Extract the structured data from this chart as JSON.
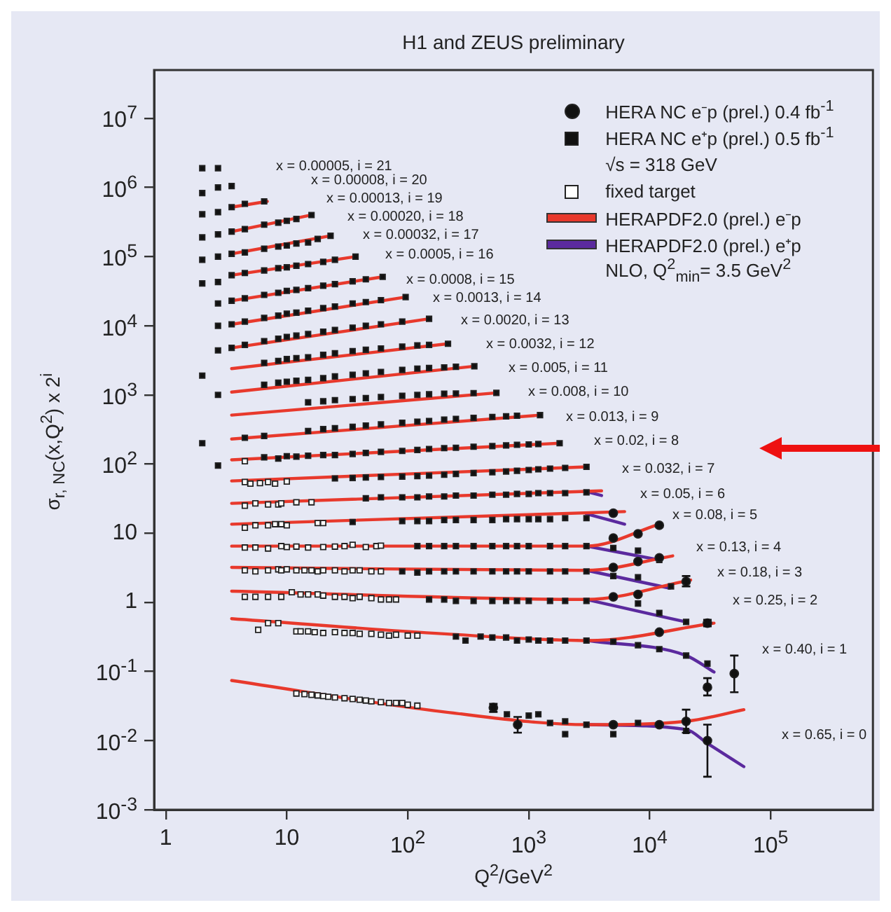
{
  "chart_data": {
    "type": "scatter",
    "title": "H1 and ZEUS preliminary",
    "xlabel": "Q$^{2}$/GeV$^{2}$",
    "ylabel": "σ$_{r, NC}$(x,Q$^{2}$) x 2$^{i}$",
    "log": "xy",
    "legend": "top right",
    "xlim": [
      0.8,
      700000
    ],
    "ylim": [
      0.001,
      50000000
    ],
    "xticks": [
      1,
      10,
      {
        "value": 100,
        "label": "10$^{2}$"
      },
      {
        "value": 1000,
        "label": "10$^{3}$"
      },
      {
        "value": 10000,
        "label": "10$^{4}$"
      },
      {
        "value": 100000,
        "label": "10$^{5}$"
      }
    ],
    "yticks": [
      {
        "value": 0.001,
        "label": "10$^{-3}$"
      },
      {
        "value": 0.01,
        "label": "10$^{-2}$"
      },
      {
        "value": 0.1,
        "label": "10$^{-1}$"
      },
      1,
      10,
      {
        "value": 100,
        "label": "10$^{2}$"
      },
      {
        "value": 1000,
        "label": "10$^{3}$"
      },
      {
        "value": 10000,
        "label": "10$^{4}$"
      },
      {
        "value": 100000,
        "label": "10$^{5}$"
      },
      {
        "value": 1000000,
        "label": "10$^{6}$"
      },
      {
        "value": 10000000,
        "label": "10$^{7}$"
      }
    ],
    "series": [
      {
        "name": "HERA NC e⁻p (prel.) 0.4 fb$^{-1}$",
        "marker": "circle",
        "color": "#111111",
        "x": [
          5000,
          5000,
          8000,
          12000,
          5000,
          8000,
          12000,
          5000,
          8000,
          20000,
          12000,
          30000,
          30000,
          50000,
          510,
          810,
          5000,
          12000,
          20000,
          30000
        ],
        "values": [
          19.5,
          8.5,
          9.8,
          13,
          3.2,
          3.9,
          4.4,
          1.2,
          1.3,
          2.0,
          0.37,
          0.5,
          0.059,
          0.093,
          0.03,
          0.017,
          0.017,
          0.017,
          0.019,
          0.01
        ],
        "errors": [
          null,
          null,
          null,
          null,
          null,
          null,
          null,
          null,
          null,
          [
            1.7,
            2.4
          ],
          null,
          [
            0.45,
            0.56
          ],
          [
            0.045,
            0.08
          ],
          [
            0.05,
            0.17
          ],
          [
            0.026,
            0.034
          ],
          [
            0.013,
            0.022
          ],
          null,
          null,
          [
            0.013,
            0.028
          ],
          [
            0.003,
            0.017
          ]
        ]
      },
      {
        "name": "HERA NC e⁺p (prel.) 0.5 fb$^{-1}$",
        "marker": "square",
        "color": "#111111",
        "x": [
          2,
          2.7,
          2,
          2.7,
          3.5,
          2,
          2.7,
          3.5,
          4.5,
          6.5,
          2,
          2.7,
          3.5,
          4.5,
          6.5,
          8.5,
          10,
          12,
          16,
          2,
          2.7,
          3.5,
          4.5,
          6.5,
          8.5,
          10,
          12,
          15,
          18,
          23,
          2,
          2.7,
          3.5,
          4.5,
          6.5,
          8.5,
          10,
          12,
          15,
          20,
          25,
          37,
          2.7,
          3.5,
          4.5,
          6.5,
          8.5,
          10,
          12,
          15,
          20,
          25,
          35,
          45,
          62,
          2.7,
          3.5,
          4.5,
          6.5,
          8.5,
          10,
          12,
          15,
          20,
          25,
          35,
          45,
          60,
          96,
          2.7,
          3.5,
          4.5,
          6.5,
          8.5,
          10,
          12,
          15,
          20,
          25,
          35,
          45,
          60,
          90,
          150,
          2,
          2.7,
          6.5,
          8.5,
          10,
          12,
          15,
          20,
          25,
          35,
          45,
          60,
          90,
          120,
          150,
          215,
          6.5,
          8.5,
          10,
          12,
          15,
          20,
          25,
          35,
          45,
          60,
          90,
          120,
          150,
          200,
          250,
          355,
          15,
          20,
          25,
          35,
          45,
          60,
          90,
          120,
          150,
          200,
          250,
          350,
          540,
          2,
          2.7,
          4.5,
          6.5,
          15,
          20,
          25,
          35,
          45,
          60,
          90,
          120,
          150,
          200,
          250,
          350,
          500,
          650,
          800,
          1240,
          6.5,
          8.5,
          10,
          12,
          15,
          20,
          25,
          35,
          45,
          60,
          90,
          120,
          150,
          200,
          250,
          350,
          500,
          650,
          800,
          1000,
          1200,
          1800,
          25,
          35,
          45,
          60,
          90,
          120,
          150,
          200,
          250,
          350,
          500,
          650,
          800,
          1000,
          1200,
          1500,
          2000,
          3000,
          45,
          60,
          90,
          120,
          150,
          200,
          250,
          350,
          500,
          650,
          800,
          1000,
          1200,
          1500,
          2000,
          3000,
          35,
          90,
          120,
          150,
          200,
          250,
          350,
          500,
          650,
          800,
          1000,
          1200,
          1500,
          2000,
          3000,
          120,
          150,
          200,
          250,
          350,
          500,
          650,
          800,
          1000,
          1500,
          2000,
          3000,
          5000,
          8000,
          12000,
          90,
          120,
          150,
          200,
          250,
          350,
          500,
          650,
          800,
          1000,
          1500,
          2000,
          3000,
          5000,
          8000,
          15000,
          150,
          200,
          250,
          350,
          500,
          650,
          800,
          1000,
          1500,
          2000,
          3000,
          8000,
          12000,
          20000,
          250,
          300,
          400,
          500,
          650,
          800,
          1000,
          1200,
          1500,
          2000,
          3000,
          5000,
          8000,
          12000,
          20000,
          30000,
          660,
          1000,
          1200,
          1500,
          2000,
          2000,
          3000,
          5000,
          8000,
          20000
        ],
        "values": [
          1900000,
          1900000,
          830000,
          1000000,
          1050000,
          410000,
          440000,
          520000,
          580000,
          630000,
          190000,
          210000,
          230000,
          250000,
          290000,
          310000,
          330000,
          350000,
          400000,
          90000,
          100000,
          110000,
          115000,
          130000,
          140000,
          145000,
          155000,
          160000,
          180000,
          200000,
          41000,
          43000,
          54000,
          58000,
          63000,
          68000,
          70000,
          74000,
          78000,
          84000,
          90000,
          100000,
          21000,
          23000,
          25000,
          28000,
          30000,
          32000,
          33000,
          35000,
          38000,
          40000,
          44000,
          47000,
          51000,
          10000,
          10500,
          11500,
          13000,
          14000,
          15000,
          15500,
          16500,
          18000,
          19000,
          21000,
          22000,
          23500,
          26000,
          4400,
          4800,
          5300,
          6000,
          6500,
          6900,
          7200,
          7600,
          8200,
          8700,
          9400,
          10000,
          10500,
          11500,
          12600,
          1900,
          1000,
          2900,
          3100,
          3300,
          3400,
          3500,
          3800,
          4000,
          4300,
          4500,
          4700,
          5000,
          5200,
          5300,
          5500,
          1400,
          1500,
          1550,
          1600,
          1650,
          1750,
          1850,
          1950,
          2050,
          2150,
          2300,
          2400,
          2450,
          2500,
          2550,
          2600,
          780,
          810,
          840,
          870,
          900,
          930,
          970,
          1000,
          1020,
          1040,
          1050,
          1060,
          1070,
          200,
          95,
          240,
          255,
          300,
          320,
          330,
          345,
          360,
          375,
          395,
          410,
          420,
          440,
          450,
          465,
          480,
          490,
          500,
          510,
          125,
          120,
          130,
          128,
          132,
          135,
          135,
          140,
          145,
          150,
          155,
          160,
          165,
          170,
          172,
          178,
          182,
          186,
          190,
          192,
          195,
          200,
          62,
          63,
          64,
          65,
          66,
          67,
          68,
          70,
          72,
          74,
          76,
          78,
          80,
          82,
          84,
          86,
          88,
          91,
          32,
          33,
          33,
          33,
          34,
          34,
          35,
          35,
          36,
          36,
          37,
          37,
          38,
          38,
          38,
          39,
          14.5,
          15,
          15,
          15,
          15.5,
          15.5,
          15.5,
          15.5,
          16,
          16,
          16,
          16,
          16,
          16.5,
          16.5,
          6.5,
          6.5,
          6.5,
          6.5,
          6.5,
          6.5,
          6.5,
          6.5,
          6.5,
          6.5,
          6.5,
          6.5,
          6.1,
          5.6,
          4.1,
          2.8,
          2.7,
          2.8,
          2.8,
          2.8,
          2.8,
          2.8,
          2.8,
          2.8,
          2.8,
          2.8,
          2.8,
          2.8,
          2.4,
          2.3,
          1.7,
          1.1,
          1.1,
          1.05,
          1.05,
          1.05,
          1.05,
          1.05,
          1.05,
          1.05,
          1.05,
          1.05,
          0.96,
          0.7,
          0.52,
          0.32,
          0.28,
          0.32,
          0.31,
          0.31,
          0.28,
          0.29,
          0.28,
          0.28,
          0.28,
          0.28,
          0.27,
          0.24,
          0.21,
          0.17,
          0.13,
          0.024,
          0.023,
          0.024,
          0.018,
          0.019,
          0.0124,
          0.017,
          0.0124,
          0.018,
          0.0138
        ]
      },
      {
        "name": "fixed target",
        "marker": "square",
        "color": "#ffffff",
        "x": [
          4.5,
          4.5,
          5,
          6,
          7,
          8,
          10,
          4.5,
          5.5,
          7,
          8.5,
          9,
          12,
          16,
          4.5,
          5.5,
          7,
          8,
          9,
          10,
          18,
          20,
          4.5,
          5.5,
          7,
          9,
          10,
          12,
          15,
          20,
          25,
          30,
          35,
          45,
          55,
          60,
          4.5,
          5.5,
          7,
          8.5,
          9,
          10,
          12,
          14,
          16,
          18,
          20,
          25,
          30,
          35,
          40,
          50,
          60,
          4.5,
          5.5,
          7,
          9,
          11,
          13,
          15,
          18,
          20,
          25,
          30,
          35,
          40,
          50,
          60,
          70,
          80,
          5.8,
          7,
          8.5,
          12,
          13,
          15,
          17,
          20,
          25,
          30,
          35,
          40,
          50,
          60,
          70,
          80,
          100,
          120,
          12,
          14,
          16,
          18,
          20,
          22,
          25,
          30,
          35,
          40,
          45,
          50,
          60,
          70,
          80,
          90,
          100,
          120
        ],
        "values": [
          110,
          55,
          52,
          53,
          55,
          52,
          56,
          25,
          27,
          26,
          26,
          27,
          28,
          28,
          12,
          13,
          13,
          13.5,
          13.5,
          13,
          14,
          14,
          6.2,
          6.2,
          6.0,
          6.5,
          6.3,
          6.4,
          6.2,
          6.3,
          6.4,
          6.5,
          6.8,
          6.3,
          6.5,
          6.6,
          2.9,
          2.8,
          2.9,
          3.0,
          2.9,
          3.0,
          2.9,
          2.9,
          2.9,
          2.8,
          2.9,
          2.9,
          2.8,
          2.9,
          2.9,
          2.8,
          2.8,
          1.2,
          1.2,
          1.2,
          1.2,
          1.4,
          1.3,
          1.3,
          1.3,
          1.25,
          1.2,
          1.2,
          1.15,
          1.2,
          1.15,
          1.1,
          1.1,
          1.1,
          0.4,
          0.5,
          0.5,
          0.38,
          0.38,
          0.38,
          0.37,
          0.36,
          0.37,
          0.36,
          0.36,
          0.35,
          0.35,
          0.34,
          0.33,
          0.34,
          0.33,
          0.33,
          0.048,
          0.047,
          0.046,
          0.045,
          0.044,
          0.043,
          0.042,
          0.041,
          0.04,
          0.039,
          0.038,
          0.037,
          0.036,
          0.035,
          0.035,
          0.035,
          0.033,
          0.032
        ]
      },
      {
        "name": "HERAPDF2.0 (prel.) e⁻p",
        "type": "line",
        "marker": "none",
        "color": "#e8392c",
        "x": [
          3.5,
          6.9,
          null,
          3.5,
          16,
          null,
          3.5,
          23,
          null,
          3.5,
          37,
          null,
          3.5,
          62,
          null,
          3.5,
          96,
          null,
          3.5,
          150,
          null,
          3.5,
          215,
          null,
          3.5,
          355,
          null,
          3.5,
          540,
          null,
          3.5,
          1240,
          null,
          3.5,
          1800,
          null,
          3.5,
          3000,
          null,
          3.5,
          4000,
          null,
          3.5,
          6200,
          null,
          3.5,
          3000,
          12000,
          null,
          3.5,
          3000,
          15500,
          null,
          3.5,
          3000,
          21800,
          null,
          3.5,
          200,
          3100,
          34000,
          null,
          3.5,
          200,
          3100,
          20000,
          60000
        ],
        "values": [
          520000,
          630000,
          null,
          230000,
          400000,
          null,
          110000,
          200000,
          null,
          54000,
          100000,
          null,
          23000,
          51000,
          null,
          10500,
          26000,
          null,
          4800,
          12600,
          null,
          2400,
          5500,
          null,
          1100,
          2600,
          null,
          510,
          1070,
          null,
          230,
          510,
          null,
          115,
          200,
          null,
          57,
          91,
          null,
          27,
          41,
          null,
          13.5,
          20.5,
          null,
          6.5,
          6.5,
          13.5,
          null,
          3.2,
          2.9,
          4.7,
          null,
          1.45,
          1.1,
          2.1,
          null,
          0.58,
          0.35,
          0.28,
          0.5,
          null,
          0.074,
          0.026,
          0.017,
          0.019,
          0.028
        ]
      },
      {
        "name": "HERAPDF2.0 (prel.) e⁺p",
        "type": "line",
        "marker": "none",
        "color": "#5b2a9e",
        "x": [
          3000,
          4000,
          null,
          3000,
          6200,
          null,
          3000,
          12000,
          null,
          3000,
          14700,
          null,
          3000,
          20000,
          null,
          3100,
          20000,
          34000,
          null,
          3100,
          20000,
          30000,
          60000
        ],
        "values": [
          40,
          35,
          null,
          19,
          13.5,
          null,
          6.5,
          4.1,
          null,
          2.9,
          1.6,
          null,
          1.1,
          0.52,
          null,
          0.28,
          0.17,
          0.098,
          null,
          0.017,
          0.0145,
          0.0091,
          0.0042
        ]
      }
    ],
    "annotations": [
      "√s = 318 GeV",
      "NLO, Q$^{2}$$_{min}$= 3.5 GeV$^{2}$",
      "x = 0.00005, i = 21",
      "x = 0.00008, i = 20",
      "x = 0.00013, i = 19",
      "x = 0.00020, i = 18",
      "x = 0.00032, i = 17",
      "x = 0.0005, i = 16",
      "x = 0.0008, i = 15",
      "x = 0.0013, i = 14",
      "x = 0.0020, i = 13",
      "x = 0.0032, i = 12",
      "x = 0.005, i = 11",
      "x = 0.008, i = 10",
      "x = 0.013, i = 9",
      "x = 0.02, i = 8",
      "x = 0.032, i = 7",
      "x = 0.05, i = 6",
      "x = 0.08, i = 5",
      "x = 0.13, i = 4",
      "x = 0.18, i = 3",
      "x = 0.25, i = 2",
      "x = 0.40, i = 1",
      "x = 0.65, i = 0"
    ]
  }
}
